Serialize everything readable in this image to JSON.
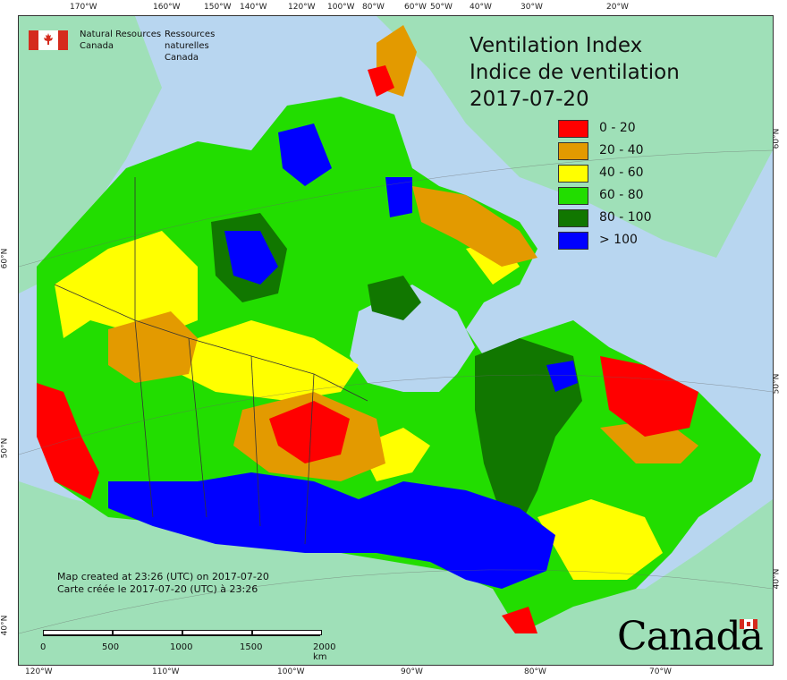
{
  "header": {
    "org_en_1": "Natural Resources",
    "org_en_2": "Canada",
    "org_fr_1": "Ressources naturelles",
    "org_fr_2": "Canada"
  },
  "title": {
    "en": "Ventilation Index",
    "fr": "Indice de ventilation",
    "date": "2017-07-20"
  },
  "legend": [
    {
      "label": "0 - 20",
      "color": "#ff0000"
    },
    {
      "label": "20 - 40",
      "color": "#e39a00"
    },
    {
      "label": "40 - 60",
      "color": "#ffff00"
    },
    {
      "label": "60 - 80",
      "color": "#22dd00"
    },
    {
      "label": "80 - 100",
      "color": "#117700"
    },
    {
      "label": "> 100",
      "color": "#0000ff"
    }
  ],
  "credit": {
    "en": "Map created at 23:26 (UTC) on 2017-07-20",
    "fr": "Carte créée le 2017-07-20 (UTC) à 23:26"
  },
  "scale": {
    "labels": [
      "0",
      "500",
      "1000",
      "1500",
      "2000 km"
    ]
  },
  "wordmark": "Canada",
  "ticks": {
    "top": [
      "170°W",
      "160°W",
      "150°W",
      "140°W",
      "120°W",
      "100°W",
      "80°W",
      "60°W",
      "50°W",
      "40°W",
      "30°W",
      "20°W"
    ],
    "bottom": [
      "120°W",
      "110°W",
      "100°W",
      "90°W",
      "80°W",
      "70°W"
    ],
    "left": [
      "60°N",
      "50°N",
      "40°N"
    ],
    "right": [
      "60°N",
      "50°N",
      "40°N"
    ]
  },
  "colors": {
    "water": "#b8d6f0",
    "land_other": "#9fe0b8"
  }
}
